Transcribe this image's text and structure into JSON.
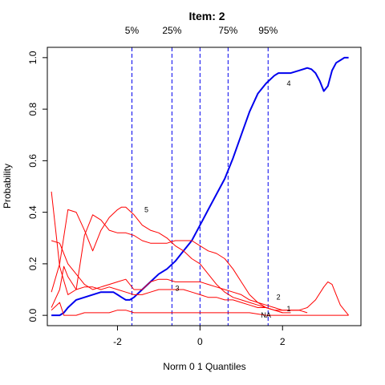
{
  "chart_data": {
    "type": "line",
    "title": "Item:  2",
    "xlabel": "Norm 0 1 Quantiles",
    "ylabel": "Probability",
    "xlim": [
      -3.7,
      3.9
    ],
    "ylim": [
      -0.04,
      1.04
    ],
    "x_ticks": [
      "-2",
      "0",
      "2"
    ],
    "x_tick_values": [
      -2,
      0,
      2
    ],
    "y_ticks": [
      "0.0",
      "0.2",
      "0.4",
      "0.6",
      "0.8",
      "1.0"
    ],
    "y_tick_values": [
      0,
      0.2,
      0.4,
      0.6,
      0.8,
      1.0
    ],
    "percentile_lines": [
      {
        "label": "5%",
        "x": -1.65
      },
      {
        "label": "25%",
        "x": -0.68
      },
      {
        "label": "",
        "x": 0.0
      },
      {
        "label": "75%",
        "x": 0.68
      },
      {
        "label": "95%",
        "x": 1.65
      }
    ],
    "grid": false,
    "series": [
      {
        "name": "4",
        "color": "#0000ee",
        "label_at": [
          2.15,
          0.9
        ],
        "x": [
          -3.6,
          -3.4,
          -3.3,
          -3.2,
          -3.0,
          -2.8,
          -2.6,
          -2.4,
          -2.2,
          -2.1,
          -2.0,
          -1.9,
          -1.8,
          -1.7,
          -1.6,
          -1.4,
          -1.2,
          -1.0,
          -0.8,
          -0.6,
          -0.4,
          -0.2,
          0.0,
          0.2,
          0.4,
          0.6,
          0.8,
          1.0,
          1.2,
          1.4,
          1.6,
          1.8,
          1.9,
          2.0,
          2.2,
          2.4,
          2.6,
          2.7,
          2.8,
          2.9,
          3.0,
          3.1,
          3.2,
          3.3,
          3.4,
          3.5,
          3.6
        ],
        "y": [
          0.0,
          0.0,
          0.01,
          0.03,
          0.06,
          0.07,
          0.08,
          0.09,
          0.09,
          0.09,
          0.08,
          0.07,
          0.06,
          0.06,
          0.07,
          0.1,
          0.13,
          0.16,
          0.18,
          0.21,
          0.25,
          0.29,
          0.35,
          0.41,
          0.47,
          0.53,
          0.61,
          0.7,
          0.79,
          0.86,
          0.9,
          0.93,
          0.94,
          0.94,
          0.94,
          0.95,
          0.96,
          0.955,
          0.94,
          0.91,
          0.87,
          0.89,
          0.95,
          0.98,
          0.99,
          1.0,
          1.0
        ],
        "weight": "bold"
      },
      {
        "name": "5",
        "color": "#ff0000",
        "label_at": [
          -1.3,
          0.41
        ],
        "x": [
          -3.6,
          -3.4,
          -3.2,
          -3.0,
          -2.8,
          -2.6,
          -2.4,
          -2.2,
          -2.0,
          -1.9,
          -1.8,
          -1.6,
          -1.4,
          -1.2,
          -1.0,
          -0.8,
          -0.6,
          -0.4,
          -0.2,
          0.0,
          0.2,
          0.4,
          0.6,
          0.8,
          1.0,
          1.2,
          1.4,
          1.6,
          1.8,
          2.0
        ],
        "y": [
          0.09,
          0.2,
          0.41,
          0.4,
          0.33,
          0.25,
          0.33,
          0.38,
          0.41,
          0.42,
          0.42,
          0.39,
          0.35,
          0.33,
          0.32,
          0.3,
          0.27,
          0.25,
          0.22,
          0.2,
          0.16,
          0.12,
          0.09,
          0.07,
          0.06,
          0.05,
          0.04,
          0.03,
          0.02,
          0.01
        ]
      },
      {
        "name": "3",
        "color": "#ff0000",
        "label_at": [
          -0.55,
          0.105
        ],
        "x": [
          -3.6,
          -3.4,
          -3.3,
          -3.2,
          -3.0,
          -2.8,
          -2.6,
          -2.4,
          -2.2,
          -2.0,
          -1.8,
          -1.6,
          -1.4,
          -1.2,
          -1.0,
          -0.8,
          -0.6,
          -0.4,
          -0.2,
          0.0,
          0.2,
          0.4,
          0.6,
          0.8,
          1.0,
          1.2,
          1.4,
          1.6,
          1.8,
          2.0,
          2.2
        ],
        "y": [
          0.03,
          0.1,
          0.19,
          0.15,
          0.1,
          0.11,
          0.11,
          0.1,
          0.11,
          0.1,
          0.09,
          0.08,
          0.08,
          0.09,
          0.1,
          0.1,
          0.1,
          0.1,
          0.09,
          0.08,
          0.07,
          0.07,
          0.06,
          0.06,
          0.05,
          0.04,
          0.03,
          0.03,
          0.02,
          0.01,
          0.01
        ]
      },
      {
        "name": "2",
        "color": "#ff0000",
        "label_at": [
          1.9,
          0.07
        ],
        "x": [
          -3.6,
          -3.4,
          -3.2,
          -3.0,
          -2.8,
          -2.6,
          -2.4,
          -2.2,
          -2.0,
          -1.8,
          -1.6,
          -1.4,
          -1.2,
          -1.0,
          -0.8,
          -0.6,
          -0.4,
          -0.2,
          0.0,
          0.2,
          0.4,
          0.6,
          0.8,
          1.0,
          1.2,
          1.4,
          1.6,
          1.8,
          2.0,
          2.2,
          2.4,
          2.6,
          2.8,
          3.0,
          3.1,
          3.2,
          3.3,
          3.4,
          3.5,
          3.6
        ],
        "y": [
          0.29,
          0.28,
          0.2,
          0.16,
          0.12,
          0.1,
          0.11,
          0.12,
          0.13,
          0.14,
          0.1,
          0.1,
          0.13,
          0.14,
          0.14,
          0.13,
          0.13,
          0.13,
          0.13,
          0.12,
          0.11,
          0.1,
          0.09,
          0.08,
          0.06,
          0.05,
          0.04,
          0.03,
          0.02,
          0.02,
          0.02,
          0.03,
          0.06,
          0.11,
          0.13,
          0.12,
          0.08,
          0.04,
          0.02,
          0.0
        ]
      },
      {
        "name": "1",
        "color": "#ff0000",
        "label_at": [
          2.15,
          0.025
        ],
        "x": [
          -3.6,
          -3.4,
          -3.2,
          -3.0,
          -2.8,
          -2.6,
          -2.4,
          -2.2,
          -2.0,
          -1.8,
          -1.6,
          -1.4,
          -1.2,
          -1.0,
          -0.8,
          -0.6,
          -0.4,
          -0.2,
          0.0,
          0.2,
          0.4,
          0.6,
          0.8,
          1.0,
          1.2,
          1.4,
          1.6,
          1.8,
          2.0,
          2.2,
          2.4,
          2.6
        ],
        "y": [
          0.48,
          0.19,
          0.08,
          0.1,
          0.31,
          0.39,
          0.37,
          0.33,
          0.32,
          0.32,
          0.31,
          0.29,
          0.28,
          0.28,
          0.28,
          0.29,
          0.29,
          0.29,
          0.27,
          0.25,
          0.24,
          0.22,
          0.18,
          0.13,
          0.08,
          0.05,
          0.03,
          0.02,
          0.02,
          0.02,
          0.02,
          0.01
        ]
      },
      {
        "name": "NA",
        "color": "#ff0000",
        "label_at": [
          1.6,
          0.0
        ],
        "x": [
          -3.6,
          -3.4,
          -3.3,
          -3.2,
          -3.0,
          -2.8,
          -2.6,
          -2.4,
          -2.2,
          -2.0,
          -1.8,
          -1.6,
          -1.2,
          -0.8,
          -0.4,
          0.0,
          0.4,
          0.8,
          1.2,
          1.6,
          2.0,
          2.4,
          2.8,
          3.2,
          3.6
        ],
        "y": [
          0.02,
          0.05,
          0.0,
          0.0,
          0.0,
          0.01,
          0.01,
          0.01,
          0.01,
          0.02,
          0.02,
          0.01,
          0.01,
          0.01,
          0.01,
          0.01,
          0.01,
          0.01,
          0.01,
          0.0,
          0.0,
          0.0,
          0.0,
          0.0,
          0.0
        ]
      }
    ]
  }
}
